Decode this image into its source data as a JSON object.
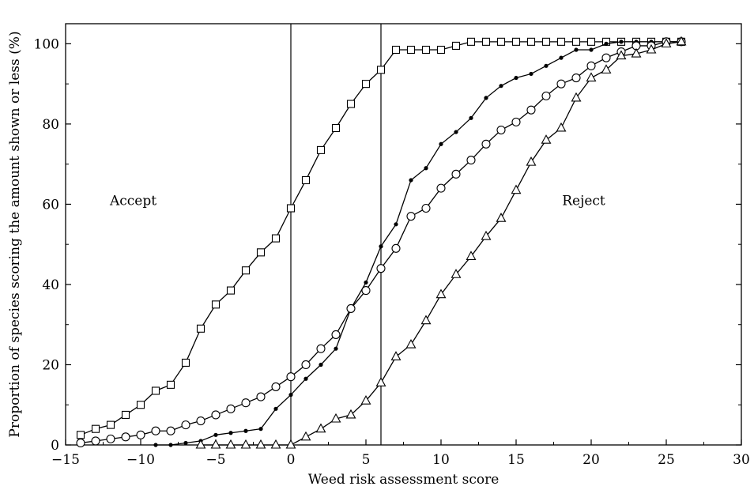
{
  "chart_data": {
    "type": "line",
    "title": "",
    "xlabel": "Weed risk assessment score",
    "ylabel": "Proportion of species scoring the amount shown or less (%)",
    "xlim": [
      -15,
      30
    ],
    "ylim": [
      0,
      105
    ],
    "xticks": [
      -15,
      -10,
      -5,
      0,
      5,
      10,
      15,
      20,
      25,
      30
    ],
    "xtick_labels": [
      "−15",
      "−10",
      "−5",
      "0",
      "5",
      "10",
      "15",
      "20",
      "25",
      "30"
    ],
    "yticks": [
      0,
      20,
      40,
      60,
      80,
      100
    ],
    "ytick_labels": [
      "0",
      "20",
      "40",
      "60",
      "80",
      "100"
    ],
    "grid": false,
    "legend": "none",
    "vlines": [
      0,
      6
    ],
    "annotations": [
      {
        "text": "Accept",
        "x": -10.5,
        "y": 61
      },
      {
        "text": "Reject",
        "x": 19.5,
        "y": 61
      }
    ],
    "series": [
      {
        "marker": "square",
        "x": [
          -14,
          -13,
          -12,
          -11,
          -10,
          -9,
          -8,
          -7,
          -6,
          -5,
          -4,
          -3,
          -2,
          -1,
          0,
          1,
          2,
          3,
          4,
          5,
          6,
          7,
          8,
          9,
          10,
          11,
          12,
          13,
          14,
          15,
          16,
          17,
          18,
          19,
          20,
          21,
          22,
          23,
          24,
          25,
          26
        ],
        "y": [
          2.5,
          4,
          5,
          7.5,
          10,
          13.5,
          15,
          20.5,
          29,
          35,
          38.5,
          43.5,
          48,
          51.5,
          59,
          66,
          73.5,
          79,
          85,
          90,
          93.5,
          98.5,
          98.5,
          98.5,
          98.5,
          99.5,
          100.5,
          100.5,
          100.5,
          100.5,
          100.5,
          100.5,
          100.5,
          100.5,
          100.5,
          100.5,
          100.5,
          100.5,
          100.5,
          100.5,
          100.5
        ]
      },
      {
        "marker": "filled-circle",
        "x": [
          -9,
          -8,
          -7,
          -6,
          -5,
          -4,
          -3,
          -2,
          -1,
          0,
          1,
          2,
          3,
          4,
          5,
          6,
          7,
          8,
          9,
          10,
          11,
          12,
          13,
          14,
          15,
          16,
          17,
          18,
          19,
          20,
          21,
          22,
          23,
          24,
          25,
          26
        ],
        "y": [
          0,
          0,
          0.5,
          1,
          2.5,
          3,
          3.5,
          4,
          9,
          12.5,
          16.5,
          20,
          24,
          34,
          40.5,
          49.5,
          55,
          66,
          69,
          75,
          78,
          81.5,
          86.5,
          89.5,
          91.5,
          92.5,
          94.5,
          96.5,
          98.5,
          98.5,
          100,
          100.5,
          100.5,
          100.5,
          100.5,
          100.5
        ]
      },
      {
        "marker": "open-circle",
        "x": [
          -14,
          -13,
          -12,
          -11,
          -10,
          -9,
          -8,
          -7,
          -6,
          -5,
          -4,
          -3,
          -2,
          -1,
          0,
          1,
          2,
          3,
          4,
          5,
          6,
          7,
          8,
          9,
          10,
          11,
          12,
          13,
          14,
          15,
          16,
          17,
          18,
          19,
          20,
          21,
          22,
          23,
          24,
          25,
          26
        ],
        "y": [
          0.5,
          1,
          1.5,
          2,
          2.5,
          3.5,
          3.5,
          5,
          6,
          7.5,
          9,
          10.5,
          12,
          14.5,
          17,
          20,
          24,
          27.5,
          34,
          38.5,
          44,
          49,
          57,
          59,
          64,
          67.5,
          71,
          75,
          78.5,
          80.5,
          83.5,
          87,
          90,
          91.5,
          94.5,
          96.5,
          98,
          99.5,
          99.5,
          100.5,
          100.5
        ]
      },
      {
        "marker": "triangle",
        "x": [
          -6,
          -5,
          -4,
          -3,
          -2,
          -1,
          0,
          1,
          2,
          3,
          4,
          5,
          6,
          7,
          8,
          9,
          10,
          11,
          12,
          13,
          14,
          15,
          16,
          17,
          18,
          19,
          20,
          21,
          22,
          23,
          24,
          25,
          26
        ],
        "y": [
          0,
          0,
          0,
          0,
          0,
          0,
          0,
          2,
          4,
          6.5,
          7.5,
          11,
          15.5,
          22,
          25,
          31,
          37.5,
          42.5,
          47,
          52,
          56.5,
          63.5,
          70.5,
          76,
          79,
          86.5,
          91.5,
          93.5,
          97,
          97.5,
          98.5,
          100,
          100.5
        ]
      }
    ]
  }
}
